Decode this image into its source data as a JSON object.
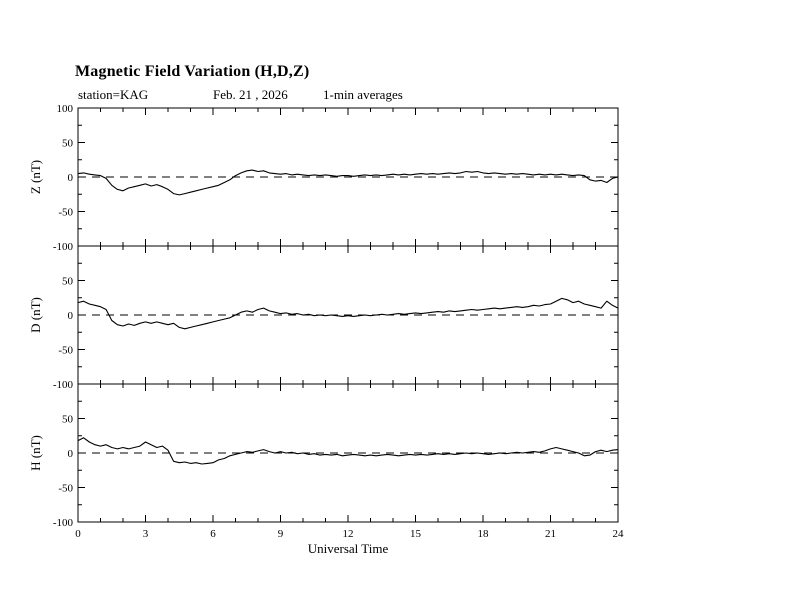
{
  "title": "Magnetic Field Variation (H,D,Z)",
  "subtitle": {
    "station": "station=KAG",
    "date": "Feb. 21 , 2026",
    "averaging": "1-min averages"
  },
  "colors": {
    "text": "#000000",
    "line": "#000000",
    "background": "#ffffff"
  },
  "chart_data": {
    "type": "line",
    "title": "Magnetic Field Variation (H,D,Z)",
    "xlabel": "Universal Time",
    "x_range": [
      0,
      24
    ],
    "x_major_ticks": [
      0,
      3,
      6,
      9,
      12,
      15,
      18,
      21,
      24
    ],
    "x_minor_step": 1,
    "y_range": [
      -100,
      100
    ],
    "y_major_ticks": [
      -100,
      -50,
      0,
      50,
      100
    ],
    "y_minor_step": 25,
    "x_step_hours": 0.25,
    "grid": false,
    "zero_line": "dashed",
    "line_color": "#000000",
    "legend": "none",
    "panels": [
      {
        "ylabel": "Z (nT)",
        "values": [
          5,
          6,
          4,
          3,
          2,
          -2,
          -12,
          -18,
          -20,
          -16,
          -14,
          -12,
          -10,
          -13,
          -11,
          -14,
          -18,
          -24,
          -26,
          -24,
          -22,
          -20,
          -18,
          -16,
          -14,
          -12,
          -8,
          -4,
          2,
          6,
          9,
          10,
          8,
          9,
          6,
          5,
          4,
          5,
          3,
          4,
          3,
          2,
          3,
          2,
          3,
          2,
          1,
          2,
          2,
          1,
          2,
          3,
          2,
          3,
          2,
          3,
          4,
          3,
          4,
          3,
          4,
          5,
          4,
          5,
          4,
          5,
          6,
          5,
          6,
          8,
          7,
          8,
          6,
          5,
          6,
          5,
          4,
          5,
          4,
          5,
          4,
          3,
          4,
          3,
          4,
          3,
          4,
          3,
          2,
          3,
          2,
          -4,
          -6,
          -5,
          -8,
          -2,
          0
        ]
      },
      {
        "ylabel": "D (nT)",
        "values": [
          18,
          20,
          16,
          14,
          12,
          8,
          -8,
          -14,
          -16,
          -13,
          -15,
          -12,
          -10,
          -12,
          -10,
          -12,
          -14,
          -12,
          -18,
          -20,
          -18,
          -16,
          -14,
          -12,
          -10,
          -8,
          -6,
          -4,
          0,
          4,
          6,
          4,
          8,
          10,
          6,
          4,
          2,
          3,
          1,
          2,
          0,
          1,
          -1,
          0,
          -1,
          0,
          -1,
          -2,
          -1,
          -2,
          -1,
          0,
          -1,
          0,
          1,
          0,
          1,
          2,
          1,
          2,
          3,
          2,
          3,
          4,
          5,
          4,
          6,
          5,
          6,
          7,
          8,
          7,
          8,
          9,
          10,
          9,
          10,
          11,
          12,
          11,
          12,
          14,
          13,
          15,
          16,
          20,
          24,
          22,
          18,
          20,
          16,
          14,
          12,
          10,
          20,
          14,
          10
        ]
      },
      {
        "ylabel": "H (nT)",
        "values": [
          18,
          22,
          16,
          12,
          10,
          12,
          8,
          6,
          8,
          6,
          8,
          10,
          16,
          12,
          8,
          10,
          4,
          -12,
          -14,
          -13,
          -15,
          -14,
          -16,
          -15,
          -14,
          -10,
          -8,
          -4,
          -2,
          0,
          2,
          1,
          3,
          5,
          2,
          0,
          2,
          0,
          1,
          -1,
          0,
          -2,
          -1,
          -3,
          -2,
          -3,
          -2,
          -4,
          -3,
          -2,
          -3,
          -4,
          -3,
          -4,
          -3,
          -2,
          -3,
          -4,
          -3,
          -2,
          -3,
          -2,
          -3,
          -2,
          -1,
          -2,
          -1,
          -2,
          -1,
          0,
          -1,
          0,
          -1,
          -2,
          -1,
          0,
          -1,
          0,
          1,
          0,
          1,
          2,
          1,
          3,
          6,
          8,
          6,
          4,
          2,
          0,
          -4,
          -3,
          2,
          4,
          2,
          4,
          5
        ]
      }
    ]
  }
}
